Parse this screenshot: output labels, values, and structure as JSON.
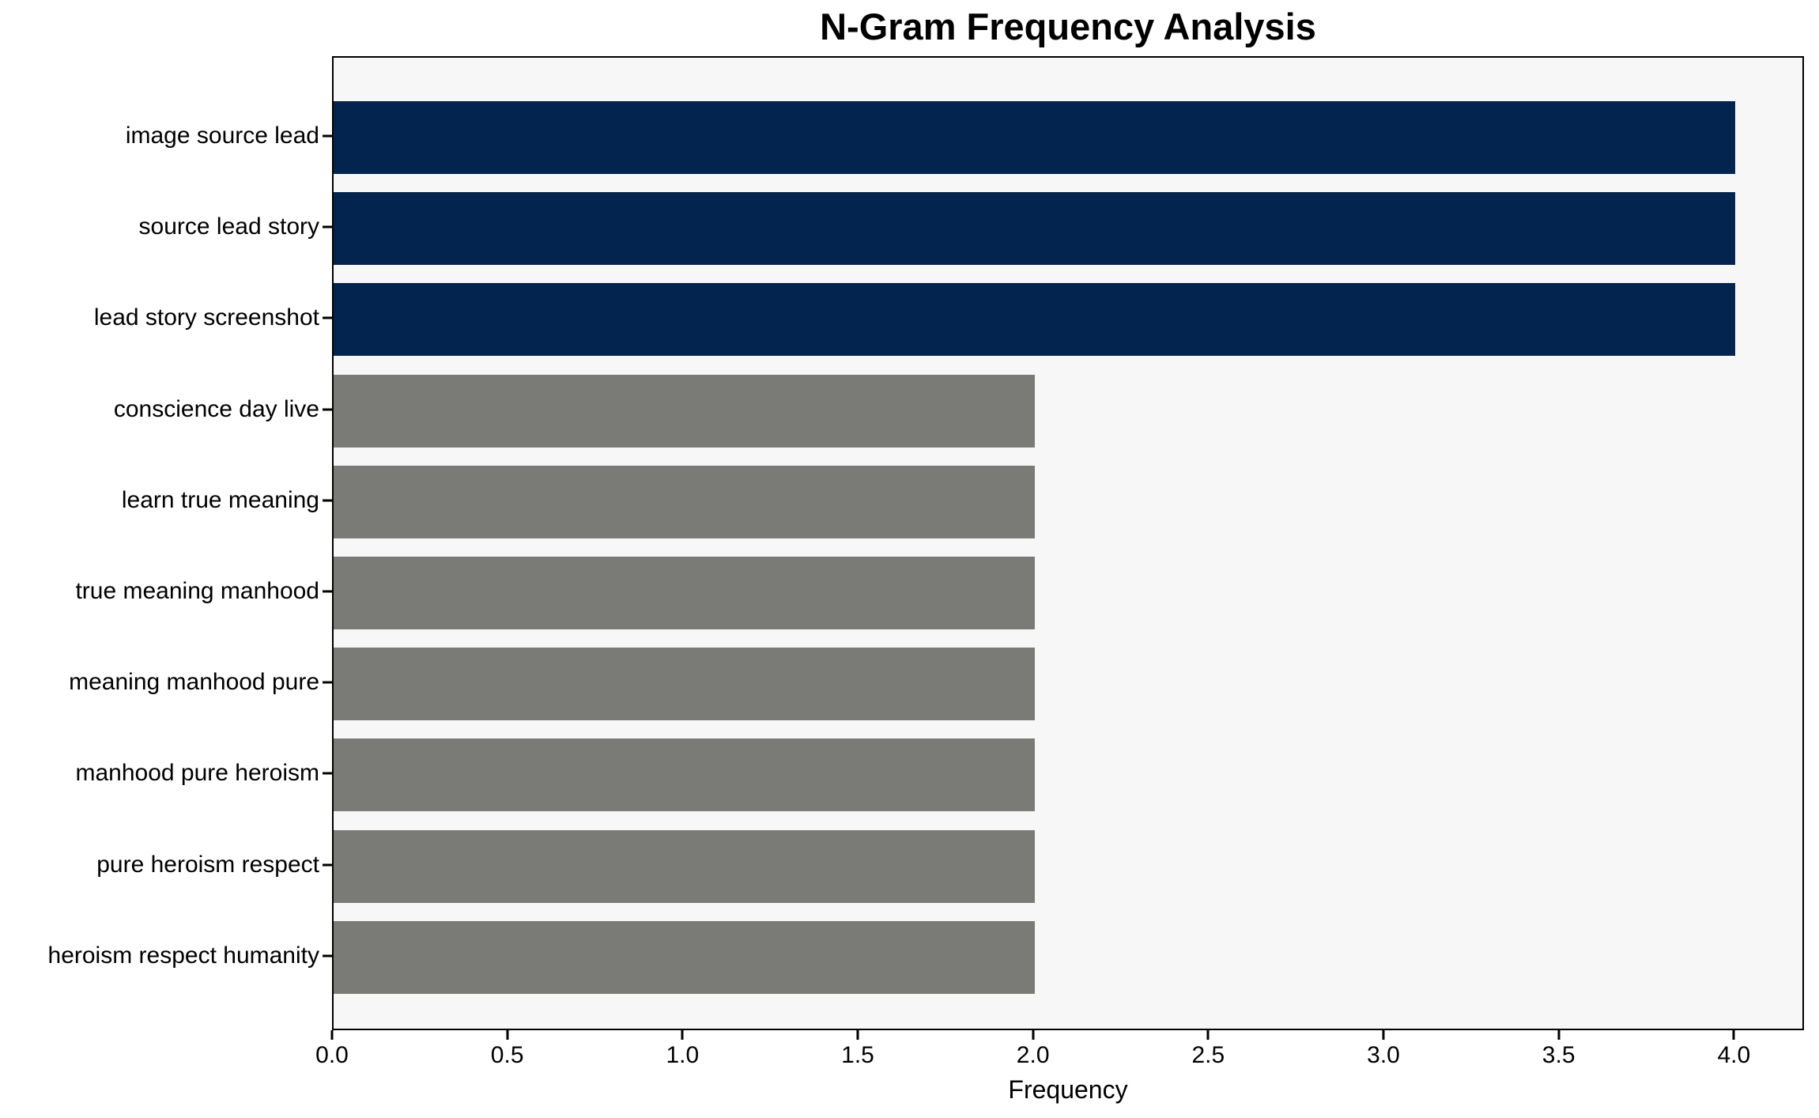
{
  "chart_data": {
    "type": "bar",
    "orientation": "horizontal",
    "title": "N-Gram Frequency Analysis",
    "xlabel": "Frequency",
    "ylabel": "",
    "categories": [
      "image source lead",
      "source lead story",
      "lead story screenshot",
      "conscience day live",
      "learn true meaning",
      "true meaning manhood",
      "meaning manhood pure",
      "manhood pure heroism",
      "pure heroism respect",
      "heroism respect humanity"
    ],
    "values": [
      4,
      4,
      4,
      2,
      2,
      2,
      2,
      2,
      2,
      2
    ],
    "bar_colors": [
      "#02244e",
      "#02244e",
      "#02244e",
      "#7a7a77",
      "#7a7a77",
      "#7a7a77",
      "#7a7a77",
      "#7a7a77",
      "#7a7a77",
      "#7a7a77"
    ],
    "xlim": [
      0,
      4.2
    ],
    "xticks": [
      0.0,
      0.5,
      1.0,
      1.5,
      2.0,
      2.5,
      3.0,
      3.5,
      4.0
    ],
    "xtick_labels": [
      "0.0",
      "0.5",
      "1.0",
      "1.5",
      "2.0",
      "2.5",
      "3.0",
      "3.5",
      "4.0"
    ],
    "grid": false,
    "legend": null,
    "colors": {
      "high_freq_bar": "#02244e",
      "low_freq_bar": "#7a7a77",
      "plot_background": "#f7f7f7",
      "figure_background": "#ffffff",
      "spine": "#000000",
      "text": "#000000"
    }
  }
}
